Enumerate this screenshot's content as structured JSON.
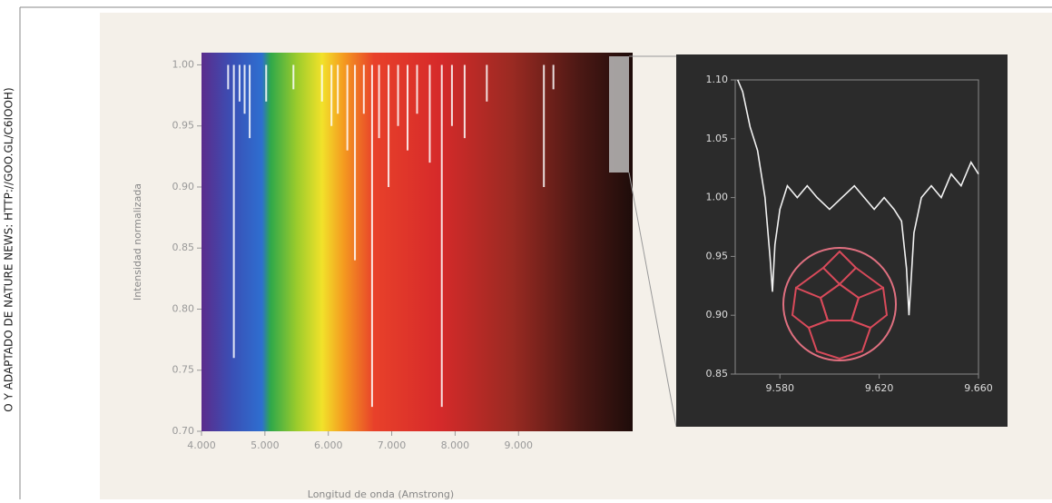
{
  "credit": "O Y ADAPTADO DE NATURE NEWS: HTTP://GOO.GL/C6IOOH)",
  "chart_data": [
    {
      "type": "spectrum",
      "ylabel": "Intensidad normalizada",
      "xlabel": "Longitud de onda (Amstrong)",
      "xlim": [
        4000,
        10800
      ],
      "ylim": [
        0.7,
        1.01
      ],
      "xticks": [
        {
          "value": 4000,
          "label": "4.000"
        },
        {
          "value": 5000,
          "label": "5.000"
        },
        {
          "value": 6000,
          "label": "6.000"
        },
        {
          "value": 7000,
          "label": "7.000"
        },
        {
          "value": 8000,
          "label": "8.000"
        },
        {
          "value": 9000,
          "label": "9.000"
        }
      ],
      "yticks": [
        {
          "value": 1.0,
          "label": "1.00"
        },
        {
          "value": 0.95,
          "label": "0.95"
        },
        {
          "value": 0.9,
          "label": "0.90"
        },
        {
          "value": 0.85,
          "label": "0.85"
        },
        {
          "value": 0.8,
          "label": "0.80"
        },
        {
          "value": 0.75,
          "label": "0.75"
        },
        {
          "value": 0.7,
          "label": "0.70"
        }
      ],
      "color": "#ffffff",
      "x": [
        4420,
        4510,
        4600,
        4680,
        4760,
        5020,
        5450,
        5900,
        6050,
        6150,
        6300,
        6420,
        6560,
        6690,
        6800,
        6950,
        7100,
        7250,
        7400,
        7600,
        7790,
        7950,
        8150,
        8500,
        9400,
        9550
      ],
      "values": [
        0.98,
        0.76,
        0.97,
        0.96,
        0.94,
        0.97,
        0.98,
        0.97,
        0.95,
        0.96,
        0.93,
        0.84,
        0.96,
        0.72,
        0.94,
        0.9,
        0.95,
        0.93,
        0.96,
        0.92,
        0.72,
        0.95,
        0.94,
        0.97,
        0.9,
        0.98
      ]
    },
    {
      "type": "line",
      "xlim": [
        9562,
        9660
      ],
      "ylim": [
        0.85,
        1.1
      ],
      "xticks": [
        {
          "value": 9580,
          "label": "9.580"
        },
        {
          "value": 9620,
          "label": "9.620"
        },
        {
          "value": 9660,
          "label": "9.660"
        }
      ],
      "yticks": [
        {
          "value": 1.1,
          "label": "1.10"
        },
        1.05,
        {
          "value": 1.0,
          "label": "1.00"
        },
        0.95,
        {
          "value": 0.9,
          "label": "0.90"
        },
        0.85
      ],
      "color": "#f2f2f2",
      "x": [
        9563,
        9565,
        9568,
        9571,
        9574,
        9576,
        9577,
        9578,
        9580,
        9583,
        9587,
        9591,
        9595,
        9600,
        9605,
        9610,
        9614,
        9618,
        9622,
        9626,
        9629,
        9631,
        9632,
        9634,
        9637,
        9641,
        9645,
        9649,
        9653,
        9657,
        9660
      ],
      "values": [
        1.1,
        1.09,
        1.06,
        1.04,
        1.0,
        0.95,
        0.92,
        0.96,
        0.99,
        1.01,
        1.0,
        1.01,
        1.0,
        0.99,
        1.0,
        1.01,
        1.0,
        0.99,
        1.0,
        0.99,
        0.98,
        0.94,
        0.9,
        0.97,
        1.0,
        1.01,
        1.0,
        1.02,
        1.01,
        1.03,
        1.02
      ]
    }
  ]
}
